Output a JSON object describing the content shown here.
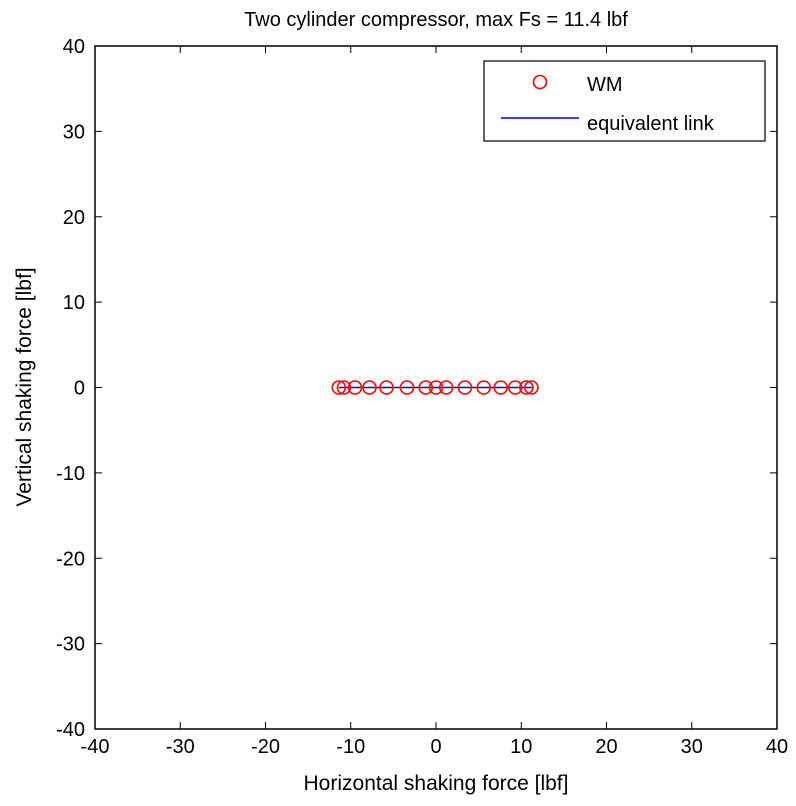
{
  "chart_data": {
    "type": "scatter",
    "title": "Two cylinder compressor, max Fs = 11.4 lbf",
    "xlabel": "Horizontal shaking force [lbf]",
    "ylabel": "Vertical shaking force [lbf]",
    "xlim": [
      -40,
      40
    ],
    "ylim": [
      -40,
      40
    ],
    "xticks": [
      -40,
      -30,
      -20,
      -10,
      0,
      10,
      20,
      30,
      40
    ],
    "yticks": [
      -40,
      -30,
      -20,
      -10,
      0,
      10,
      20,
      30,
      40
    ],
    "grid": false,
    "legend_position": "top-right",
    "series": [
      {
        "name": "WM",
        "style": "markers",
        "marker": "circle-open",
        "color": "#ff0000",
        "x": [
          -11.4,
          -10.8,
          -9.5,
          -7.8,
          -5.8,
          -3.4,
          -1.2,
          0.0,
          1.2,
          3.4,
          5.6,
          7.6,
          9.3,
          10.6,
          11.2
        ],
        "y": [
          0,
          0,
          0,
          0,
          0,
          0,
          0,
          0,
          0,
          0,
          0,
          0,
          0,
          0,
          0
        ]
      },
      {
        "name": "equivalent link",
        "style": "line",
        "color": "#0000ff",
        "x": [
          -11.4,
          11.4
        ],
        "y": [
          0,
          0
        ]
      }
    ]
  }
}
